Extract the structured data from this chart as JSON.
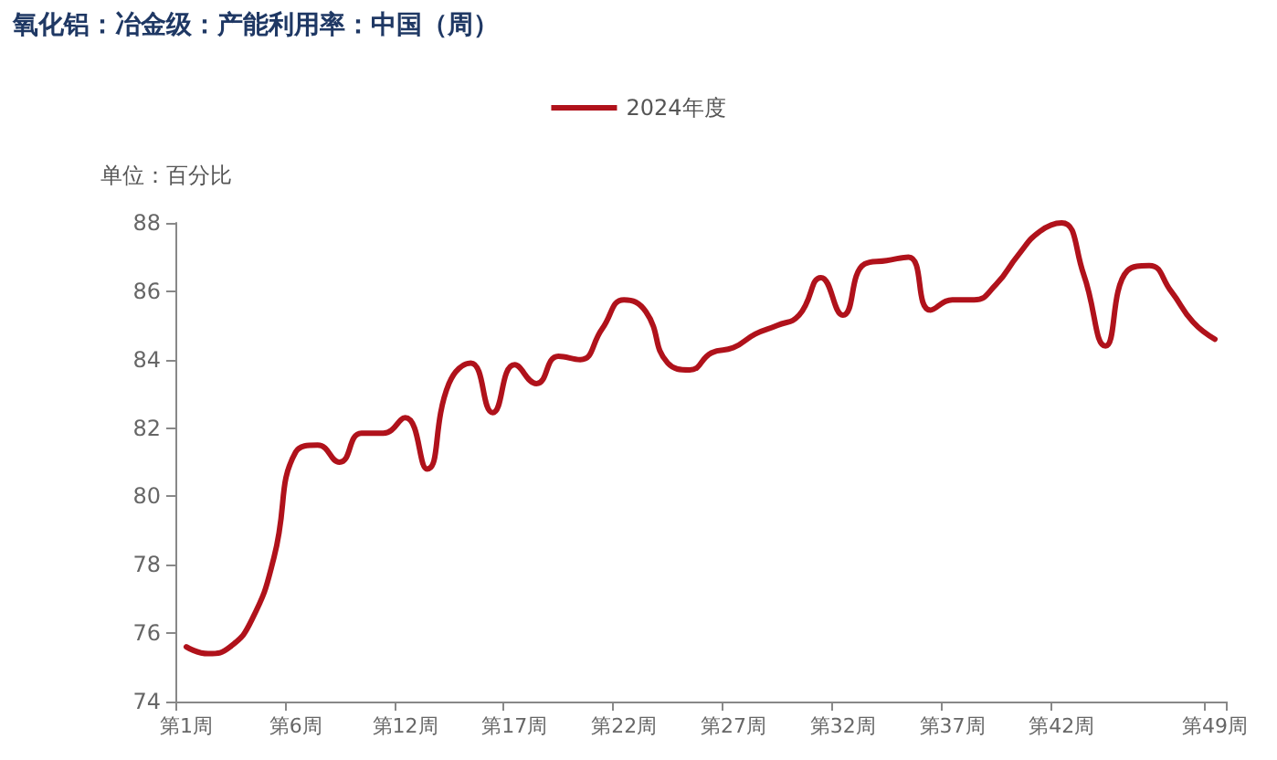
{
  "chart_data": {
    "type": "line",
    "title": "氧化铝：冶金级：产能利用率：中国（周）",
    "ylabel": "单位：百分比",
    "categories": [
      "第1周",
      null,
      null,
      null,
      null,
      "第6周",
      null,
      null,
      null,
      null,
      "第12周",
      null,
      null,
      null,
      null,
      "第17周",
      null,
      null,
      null,
      null,
      "第22周",
      null,
      null,
      null,
      null,
      "第27周",
      null,
      null,
      null,
      null,
      "第32周",
      null,
      null,
      null,
      null,
      "第37周",
      null,
      null,
      null,
      null,
      "第42周",
      null,
      null,
      null,
      null,
      null,
      null,
      "第49周"
    ],
    "series": [
      {
        "name": "2024年度",
        "color": "#b0121b",
        "values": [
          75.6,
          75.4,
          75.6,
          76.4,
          78.2,
          81.3,
          81.5,
          81.0,
          81.85,
          81.85,
          82.3,
          80.8,
          83.3,
          83.9,
          82.45,
          83.85,
          83.3,
          84.1,
          84.0,
          84.9,
          85.75,
          85.4,
          83.9,
          83.7,
          84.2,
          84.35,
          84.75,
          85.0,
          85.3,
          86.4,
          85.3,
          86.8,
          86.9,
          87.0,
          85.45,
          85.75,
          85.75,
          86.2,
          87.05,
          87.75,
          88.0,
          86.5,
          84.4,
          86.6,
          86.75,
          86.0,
          85.1,
          84.6
        ]
      }
    ],
    "ylim": [
      74,
      88
    ],
    "yticks": [
      74,
      76,
      78,
      80,
      82,
      84,
      86,
      88
    ],
    "grid": false,
    "legend": "top",
    "marker": "none",
    "line_style": "solid"
  }
}
